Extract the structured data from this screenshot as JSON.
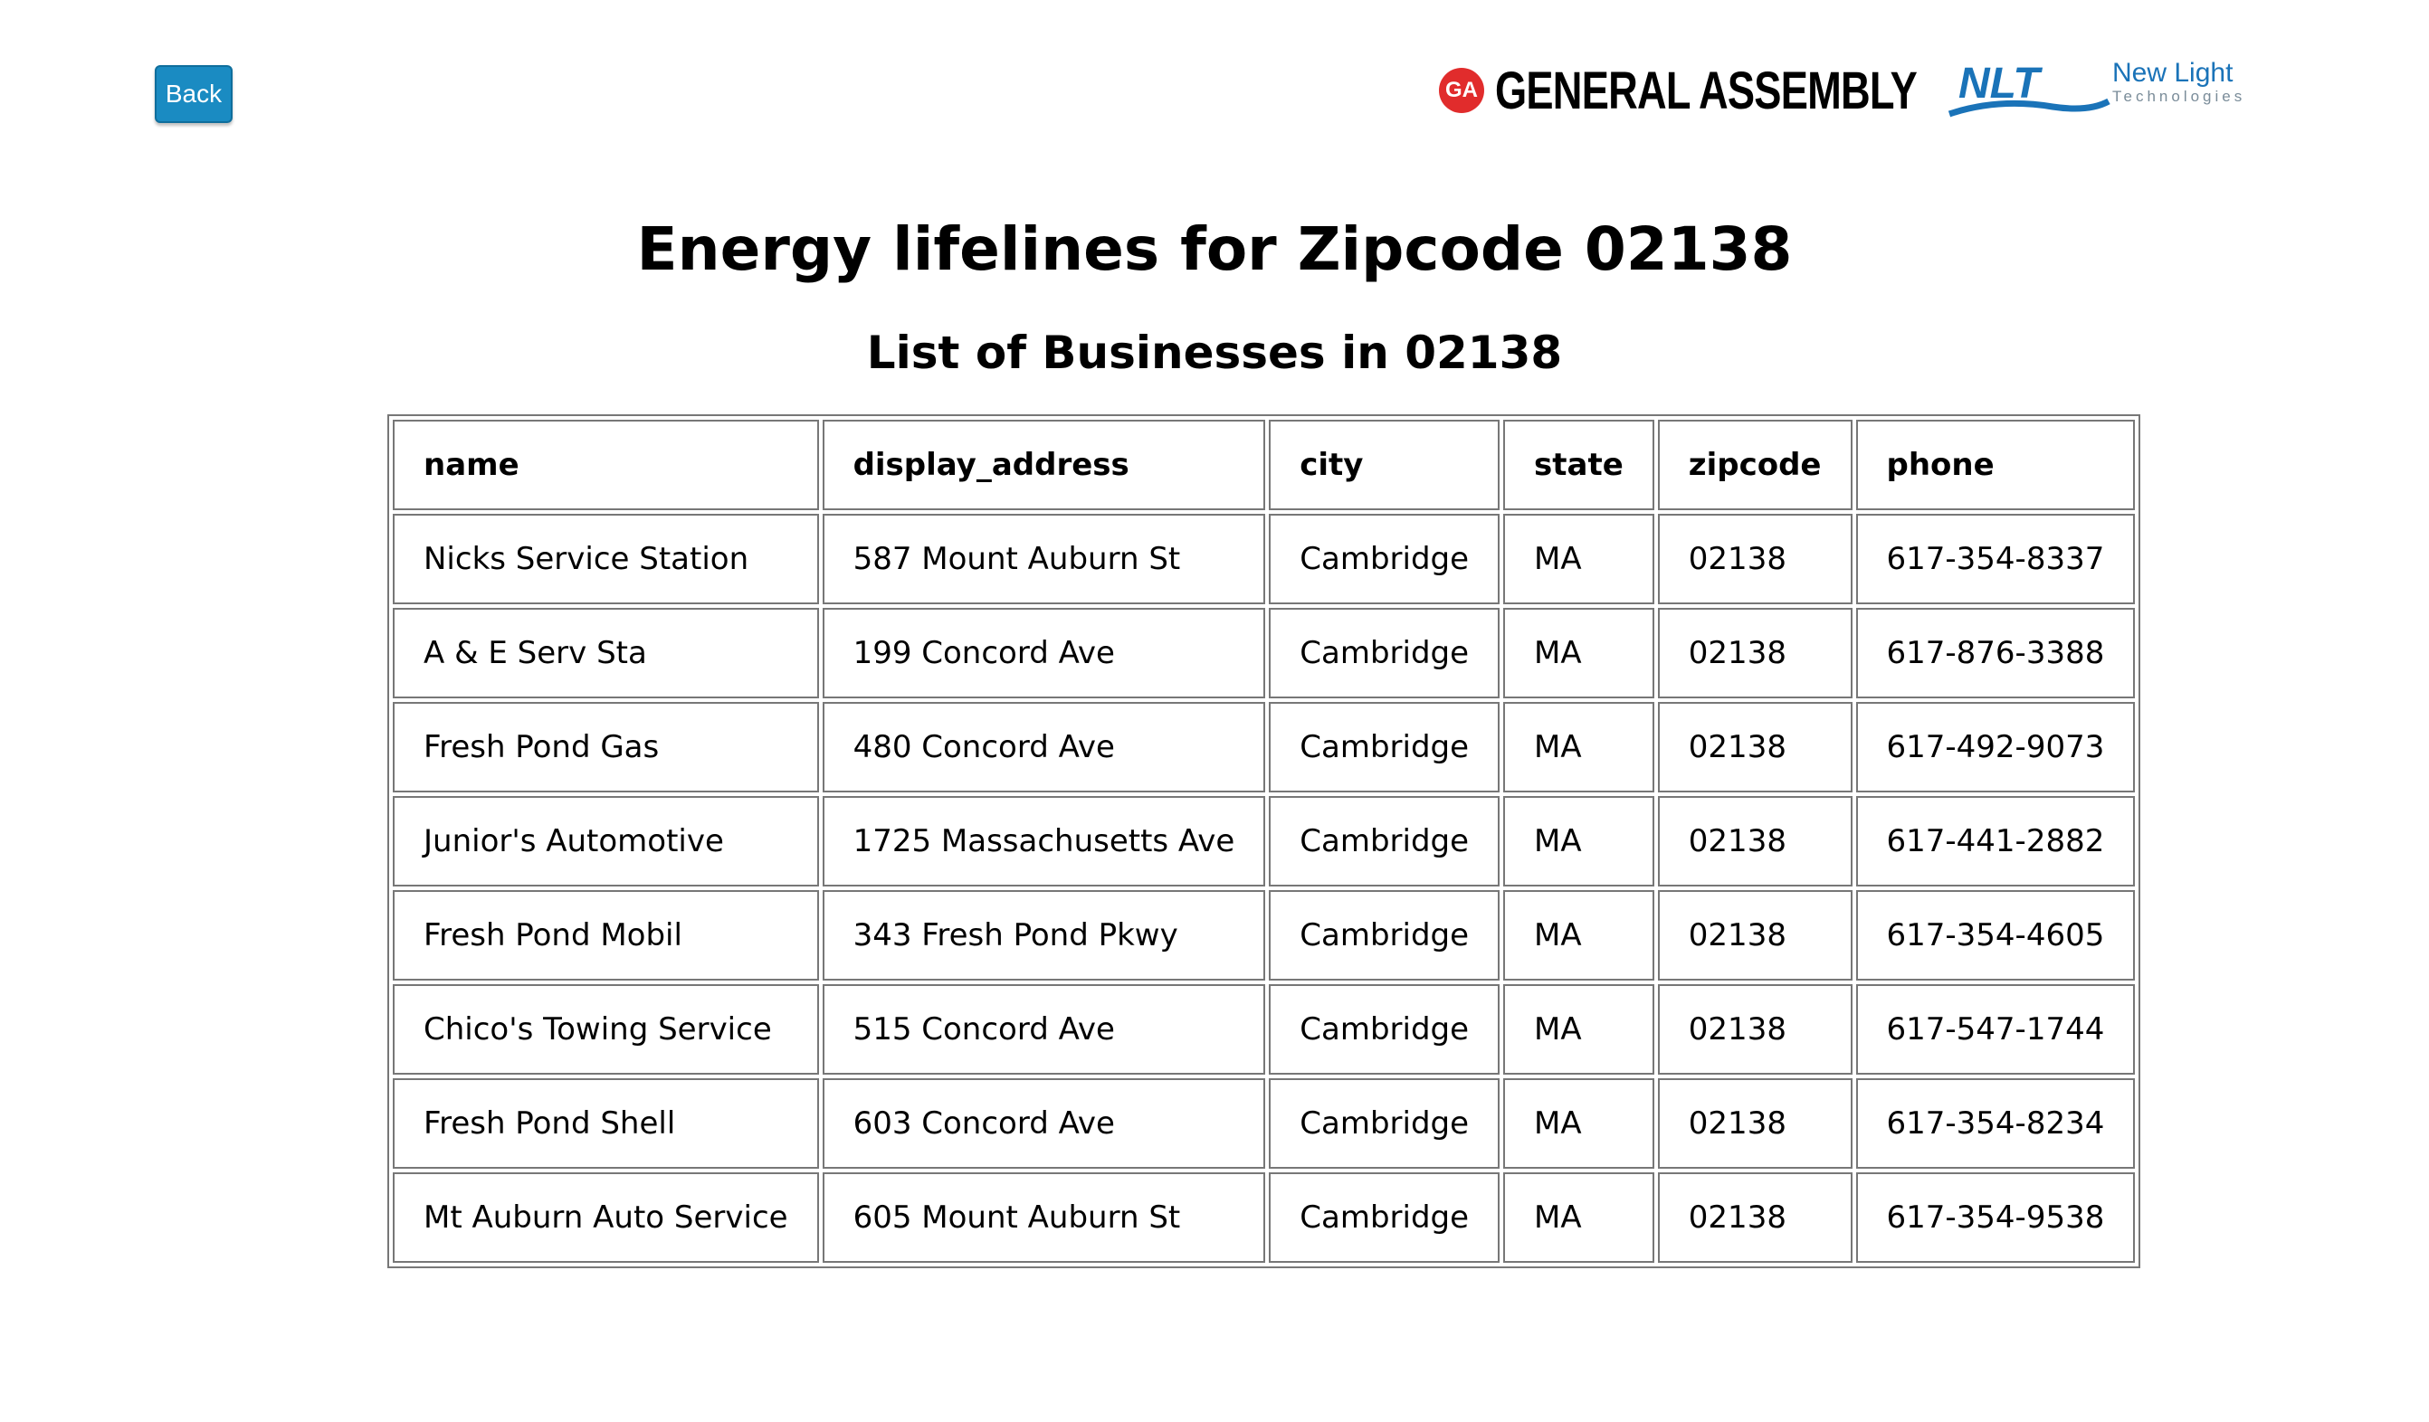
{
  "back_button": {
    "label": "Back"
  },
  "logos": {
    "general_assembly": {
      "badge": "GA",
      "name": "GENERAL ASSEMBLY",
      "color": "#e12c2c"
    },
    "new_light": {
      "mark": "NLT",
      "name": "New Light",
      "tagline": "Technologies",
      "color": "#1a73b8"
    }
  },
  "header": {
    "title": "Energy lifelines for Zipcode 02138",
    "subtitle": "List of Businesses in 02138"
  },
  "table": {
    "columns": [
      "name",
      "display_address",
      "city",
      "state",
      "zipcode",
      "phone"
    ],
    "rows": [
      [
        "Nicks Service Station",
        "587 Mount Auburn St",
        "Cambridge",
        "MA",
        "02138",
        "617-354-8337"
      ],
      [
        "A & E Serv Sta",
        "199 Concord Ave",
        "Cambridge",
        "MA",
        "02138",
        "617-876-3388"
      ],
      [
        "Fresh Pond Gas",
        "480 Concord Ave",
        "Cambridge",
        "MA",
        "02138",
        "617-492-9073"
      ],
      [
        "Junior's Automotive",
        "1725 Massachusetts Ave",
        "Cambridge",
        "MA",
        "02138",
        "617-441-2882"
      ],
      [
        "Fresh Pond Mobil",
        "343 Fresh Pond Pkwy",
        "Cambridge",
        "MA",
        "02138",
        "617-354-4605"
      ],
      [
        "Chico's Towing Service",
        "515 Concord Ave",
        "Cambridge",
        "MA",
        "02138",
        "617-547-1744"
      ],
      [
        "Fresh Pond Shell",
        "603 Concord Ave",
        "Cambridge",
        "MA",
        "02138",
        "617-354-8234"
      ],
      [
        "Mt Auburn Auto Service",
        "605 Mount Auburn St",
        "Cambridge",
        "MA",
        "02138",
        "617-354-9538"
      ]
    ]
  },
  "colors": {
    "back_button_bg": "#1a8bc2",
    "table_border": "#777777"
  }
}
